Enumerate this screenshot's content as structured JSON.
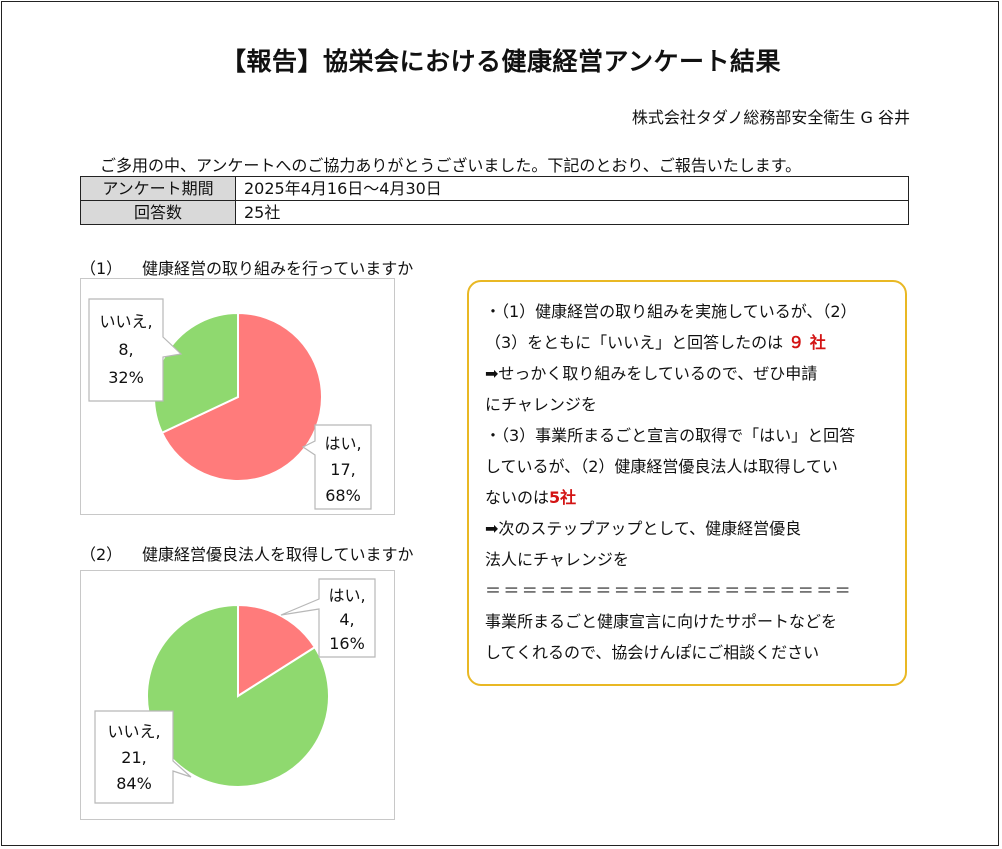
{
  "title": "【報告】協栄会における健康経営アンケート結果",
  "author": "株式会社タダノ総務部安全衛生 G 谷井",
  "intro": "ご多用の中、アンケートへのご協力ありがとうございました。下記のとおり、ご報告いたします。",
  "info_table": [
    {
      "key": "アンケート期間",
      "value": "2025年4月16日～4月30日"
    },
    {
      "key": "回答数",
      "value": "25社"
    }
  ],
  "questions": [
    {
      "num": "（1）",
      "text": "健康経営の取り組みを行っていますか"
    },
    {
      "num": "（2）",
      "text": "健康経営優良法人を取得していますか"
    }
  ],
  "colors": {
    "yes": "#ff7b7b",
    "no": "#8fd96f",
    "note_border": "#e9b824",
    "highlight": "#d31414"
  },
  "chart_data": [
    {
      "type": "pie",
      "categories": [
        "はい",
        "いいえ"
      ],
      "values": [
        17,
        8
      ],
      "percent_labels": [
        "68%",
        "32%"
      ],
      "count_labels": [
        "17,",
        "8,"
      ],
      "name_labels": [
        "はい,",
        "いいえ,"
      ]
    },
    {
      "type": "pie",
      "categories": [
        "はい",
        "いいえ"
      ],
      "values": [
        4,
        21
      ],
      "percent_labels": [
        "16%",
        "84%"
      ],
      "count_labels": [
        "4,",
        "21,"
      ],
      "name_labels": [
        "はい,",
        "いいえ,"
      ]
    }
  ],
  "note": {
    "l1": "・（1）健康経営の取り組みを実施しているが、（2）",
    "l2a": "（3）をともに「いいえ」と回答したのは",
    "l2b": "９ 社",
    "l3": "➡せっかく取り組みをしているので、ぜひ申請",
    "l4": "にチャレンジを",
    "l5": "・（3）事業所まるごと宣言の取得で「はい」と回答",
    "l6": "しているが、（2）健康経営優良法人は取得してい",
    "l7a": "ないのは",
    "l7b": "5社",
    "l8": "➡次のステップアップとして、健康経営優良",
    "l9": "法人にチャレンジを",
    "sep": "＝＝＝＝＝＝＝＝＝＝＝＝＝＝＝＝＝＝＝＝",
    "l10": "事業所まるごと健康宣言に向けたサポートなどを",
    "l11": "してくれるので、協会けんぽにご相談ください"
  }
}
